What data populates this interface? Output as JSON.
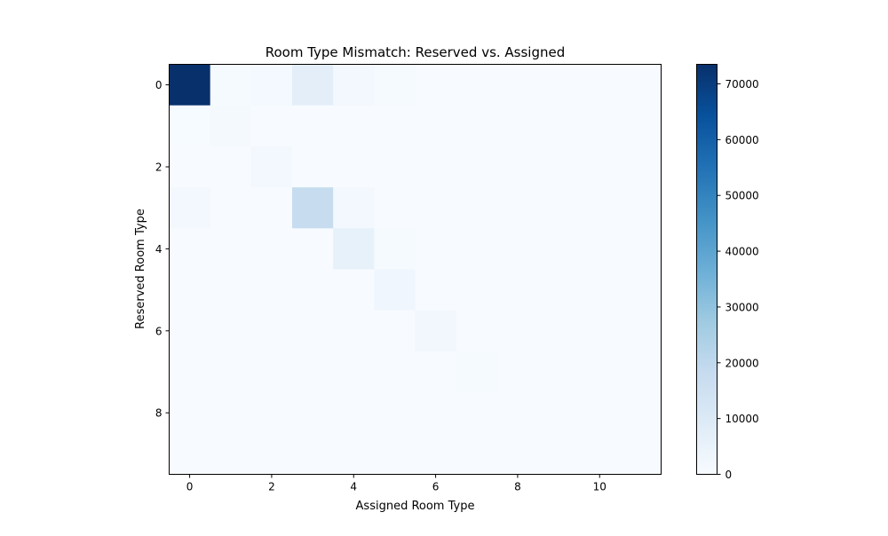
{
  "chart_data": {
    "type": "heatmap",
    "title": "Room Type Mismatch: Reserved vs. Assigned",
    "xlabel": "Assigned Room Type",
    "ylabel": "Reserved Room Type",
    "x_ticks": [
      "0",
      "2",
      "4",
      "6",
      "8",
      "10"
    ],
    "y_ticks": [
      "0",
      "2",
      "4",
      "6",
      "8"
    ],
    "n_cols": 12,
    "n_rows": 10,
    "colormap": "Blues",
    "color_range": [
      0,
      73500
    ],
    "colorbar_ticks": [
      "0",
      "10000",
      "20000",
      "30000",
      "40000",
      "50000",
      "60000",
      "70000"
    ],
    "values": [
      [
        73500,
        700,
        1300,
        7200,
        1500,
        800,
        0,
        0,
        0,
        0,
        0,
        0
      ],
      [
        200,
        1000,
        0,
        0,
        0,
        0,
        0,
        0,
        0,
        0,
        0,
        0
      ],
      [
        100,
        0,
        1500,
        0,
        0,
        0,
        0,
        0,
        0,
        0,
        0,
        0
      ],
      [
        1500,
        0,
        0,
        18000,
        1500,
        0,
        0,
        0,
        0,
        0,
        0,
        0
      ],
      [
        0,
        0,
        0,
        0,
        5800,
        700,
        0,
        0,
        0,
        0,
        0,
        0
      ],
      [
        0,
        0,
        0,
        0,
        0,
        2700,
        0,
        0,
        0,
        0,
        0,
        0
      ],
      [
        0,
        0,
        0,
        0,
        0,
        0,
        2100,
        0,
        0,
        0,
        0,
        0
      ],
      [
        0,
        0,
        0,
        0,
        0,
        0,
        0,
        800,
        0,
        0,
        0,
        0
      ],
      [
        0,
        0,
        0,
        0,
        0,
        0,
        0,
        0,
        0,
        0,
        0,
        0
      ],
      [
        0,
        0,
        0,
        0,
        0,
        0,
        0,
        0,
        0,
        0,
        0,
        0
      ]
    ]
  }
}
